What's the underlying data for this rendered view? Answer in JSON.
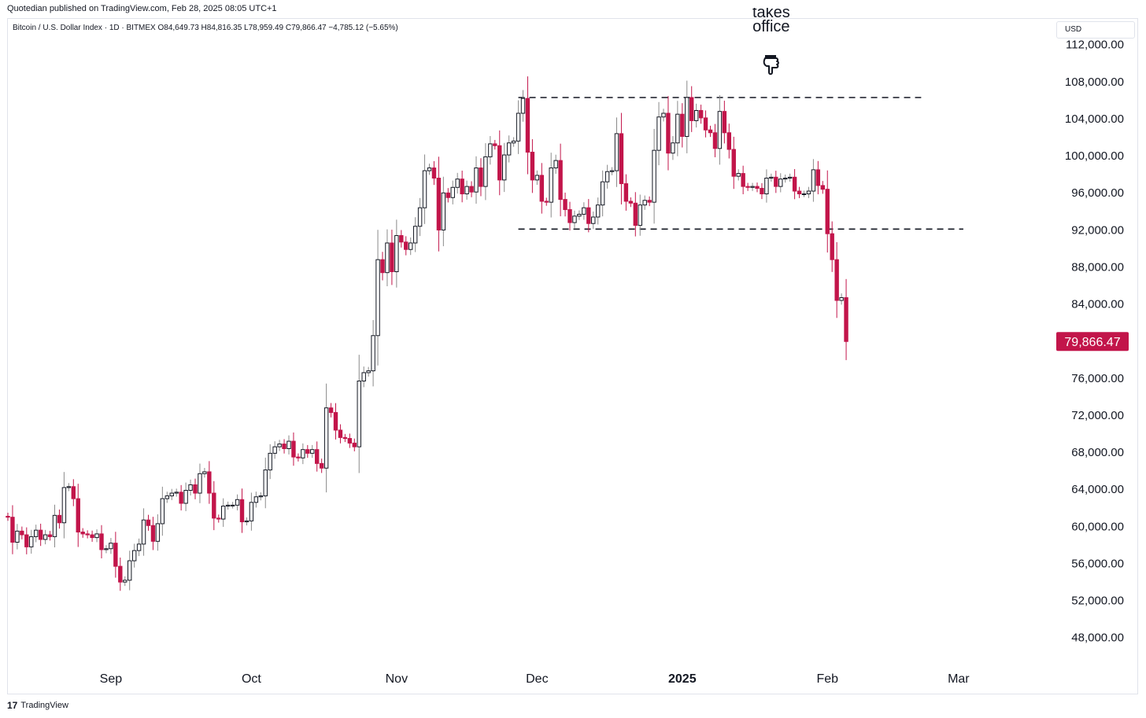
{
  "header": {
    "published": "Quotedian published on TradingView.com, Feb 28, 2025 08:05 UTC+1",
    "symbol_line": "Bitcoin / U.S. Dollar Index · 1D · BITMEX  O84,649.73  H84,816.35  L78,959.49  C79,866.47  −4,785.12 (−5.65%)",
    "currency": "USD"
  },
  "annotation": {
    "faded_text": "takes",
    "text": "office"
  },
  "branding": {
    "logo_text": "TradingView"
  },
  "colors": {
    "up": "#ffffff",
    "down": "#c2154a",
    "wick_up": "#8a8a8a",
    "edge": "#131722",
    "price_label_bg": "#c2154a"
  },
  "icons": {
    "pointing-hand": "hand-pointing-down-icon",
    "logo": "tradingview-logo-icon"
  },
  "chart_data": {
    "type": "candlestick",
    "ylim": [
      45000,
      113500
    ],
    "y_ticks": [
      {
        "v": 112000,
        "label": "112,000.00"
      },
      {
        "v": 108000,
        "label": "108,000.00"
      },
      {
        "v": 104000,
        "label": "104,000.00"
      },
      {
        "v": 100000,
        "label": "100,000.00"
      },
      {
        "v": 96000,
        "label": "96,000.00"
      },
      {
        "v": 92000,
        "label": "92,000.00"
      },
      {
        "v": 88000,
        "label": "88,000.00"
      },
      {
        "v": 84000,
        "label": "84,000.00"
      },
      {
        "v": 76000,
        "label": "76,000.00"
      },
      {
        "v": 72000,
        "label": "72,000.00"
      },
      {
        "v": 68000,
        "label": "68,000.00"
      },
      {
        "v": 64000,
        "label": "64,000.00"
      },
      {
        "v": 60000,
        "label": "60,000.00"
      },
      {
        "v": 56000,
        "label": "56,000.00"
      },
      {
        "v": 52000,
        "label": "52,000.00"
      },
      {
        "v": 48000,
        "label": "48,000.00"
      }
    ],
    "x_ticks": [
      {
        "label": "Sep",
        "date": "2024-09-01",
        "bold": false
      },
      {
        "label": "Oct",
        "date": "2024-10-01",
        "bold": false
      },
      {
        "label": "Nov",
        "date": "2024-11-01",
        "bold": false
      },
      {
        "label": "Dec",
        "date": "2024-12-01",
        "bold": false
      },
      {
        "label": "2025",
        "date": "2025-01-01",
        "bold": true
      },
      {
        "label": "Feb",
        "date": "2025-02-01",
        "bold": false
      },
      {
        "label": "Mar",
        "date": "2025-03-01",
        "bold": false
      }
    ],
    "last_price": {
      "value": 79866.47,
      "label": "79,866.47"
    },
    "reference_lines": [
      {
        "y": 106200,
        "x_start": "2024-11-27",
        "x_end": "2025-02-19",
        "style": "dashed"
      },
      {
        "y": 92000,
        "x_start": "2024-11-27",
        "x_end": "2025-02-28",
        "style": "dashed"
      }
    ],
    "annotation_point": {
      "date": "2025-01-20",
      "label": "takes office"
    },
    "start_date": "2024-08-10",
    "start_open": 61000,
    "closes": [
      60900,
      58200,
      59400,
      59000,
      57700,
      58800,
      59500,
      58500,
      59000,
      58800,
      61100,
      60300,
      64100,
      64200,
      62900,
      59300,
      59100,
      59000,
      58700,
      59100,
      57400,
      57500,
      58100,
      55600,
      53900,
      54100,
      56200,
      57300,
      58000,
      60600,
      60000,
      58300,
      60200,
      62900,
      63200,
      63500,
      63600,
      62400,
      63800,
      64400,
      63500,
      65600,
      65800,
      63500,
      60800,
      60700,
      62100,
      62200,
      62200,
      62800,
      60400,
      60500,
      62500,
      63100,
      63200,
      66000,
      67800,
      68500,
      68800,
      68300,
      69100,
      67400,
      67300,
      68200,
      67800,
      68200,
      66700,
      66200,
      72700,
      72200,
      70300,
      69500,
      69400,
      68900,
      68500,
      75600,
      76500,
      76700,
      80500,
      88700,
      87300,
      90500,
      87400,
      91300,
      90600,
      89800,
      90500,
      92300,
      94300,
      98300,
      98600,
      97500,
      91900,
      95900,
      95400,
      96500,
      97400,
      95800,
      96600,
      96000,
      98600,
      96600,
      99800,
      101200,
      101000,
      97300,
      100000,
      101300,
      101500,
      104500,
      106100,
      100300,
      97300,
      97800,
      95000,
      94900,
      98600,
      99400,
      95200,
      94100,
      92700,
      93400,
      93600,
      94300,
      92600,
      93300,
      94600,
      97100,
      98200,
      98300,
      102300,
      96900,
      95000,
      94800,
      92400,
      94600,
      95100,
      94900,
      100500,
      104100,
      104500,
      100200,
      101300,
      104400,
      102000,
      106200,
      103700,
      104800,
      104000,
      102700,
      102400,
      100700,
      104700,
      102400,
      100600,
      97700,
      98000,
      96600,
      96500,
      96600,
      96400,
      95800,
      97500,
      97600,
      96600,
      97400,
      97500,
      97600,
      96100,
      95800,
      95800,
      96100,
      98400,
      96700,
      96300,
      91500,
      88700,
      84300,
      84600,
      79866.47
    ]
  }
}
